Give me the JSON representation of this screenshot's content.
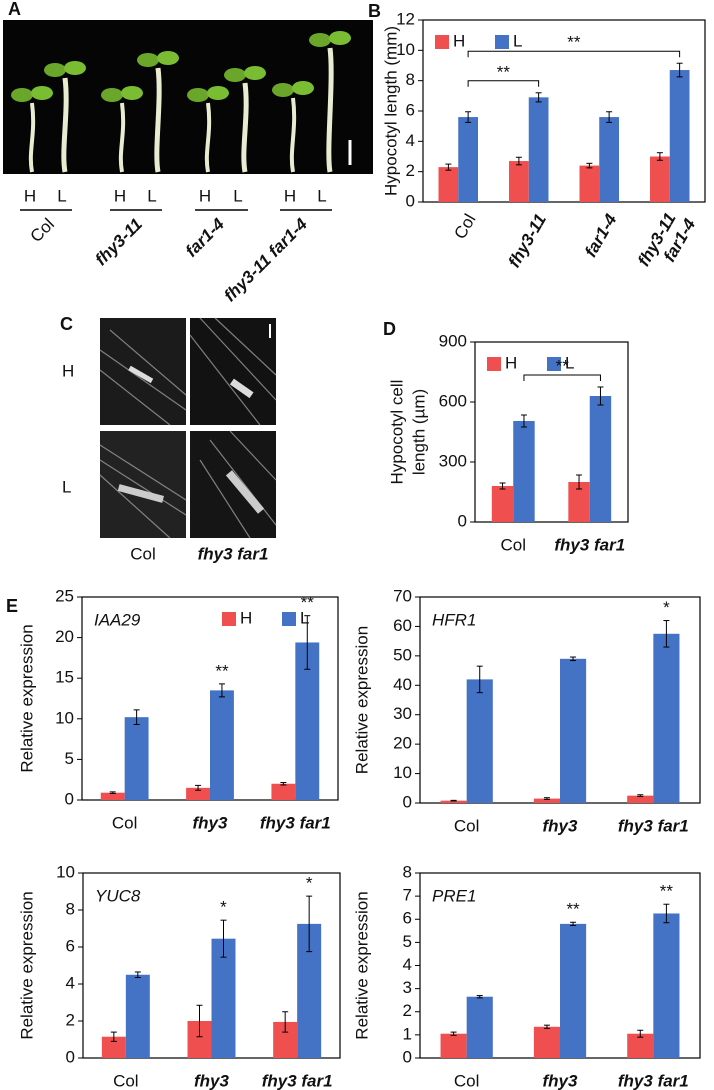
{
  "photo_a": {
    "panel": "A",
    "conditions": [
      "H",
      "L"
    ],
    "genotypes": [
      "Col",
      "fhy3-11",
      "far1-4",
      "fhy3-11 far1-4"
    ]
  },
  "photo_c": {
    "panel": "C",
    "conditions": [
      "H",
      "L"
    ],
    "genotypes": [
      "Col",
      "fhy3 far1"
    ]
  },
  "panel_e": "E",
  "chart_data": [
    {
      "type": "bar",
      "panel": "B",
      "ylabel": "Hypocotyl length (mm)",
      "categories": [
        "Col",
        "fhy3-11",
        "far1-4",
        "fhy3-11 far1-4"
      ],
      "category_italic": [
        false,
        true,
        true,
        true
      ],
      "wrap_labels": true,
      "rotate_labels": true,
      "series": [
        {
          "name": "H",
          "color": "#f04f4f",
          "values": [
            2.3,
            2.7,
            2.4,
            3.0
          ],
          "errors": [
            0.2,
            0.25,
            0.15,
            0.25
          ]
        },
        {
          "name": "L",
          "color": "#4472c4",
          "values": [
            5.6,
            6.9,
            5.6,
            8.7
          ],
          "errors": [
            0.35,
            0.3,
            0.35,
            0.45
          ]
        }
      ],
      "ylim": [
        0,
        12
      ],
      "yticks": [
        0,
        2,
        4,
        6,
        8,
        10,
        12
      ],
      "legend": "top-left",
      "comparisons": [
        {
          "between": [
            "Col",
            "fhy3-11"
          ],
          "label": "**"
        },
        {
          "between": [
            "Col",
            "fhy3-11 far1-4"
          ],
          "label": "**"
        }
      ]
    },
    {
      "type": "bar",
      "panel": "D",
      "ylabel": [
        "Hypocotyl cell",
        "length (µm)"
      ],
      "categories": [
        "Col",
        "fhy3 far1"
      ],
      "category_italic": [
        false,
        true
      ],
      "series": [
        {
          "name": "H",
          "color": "#f04f4f",
          "values": [
            180,
            200
          ],
          "errors": [
            15,
            35
          ]
        },
        {
          "name": "L",
          "color": "#4472c4",
          "values": [
            505,
            630
          ],
          "errors": [
            30,
            45
          ]
        }
      ],
      "ylim": [
        0,
        900
      ],
      "yticks": [
        0,
        300,
        600,
        900
      ],
      "legend": "top-left",
      "comparisons": [
        {
          "between": [
            "Col",
            "fhy3 far1"
          ],
          "label": "**"
        }
      ]
    },
    {
      "type": "bar",
      "title": "IAA29",
      "ylabel": "Relative expression",
      "categories": [
        "Col",
        "fhy3",
        "fhy3 far1"
      ],
      "category_italic": [
        false,
        true,
        true
      ],
      "series": [
        {
          "name": "H",
          "color": "#f04f4f",
          "values": [
            0.9,
            1.5,
            2.0
          ],
          "errors": [
            0.1,
            0.3,
            0.15
          ]
        },
        {
          "name": "L",
          "color": "#4472c4",
          "values": [
            10.2,
            13.5,
            19.4
          ],
          "errors": [
            0.9,
            0.8,
            3.3
          ]
        }
      ],
      "ylim": [
        0,
        25
      ],
      "yticks": [
        0,
        5,
        10,
        15,
        20,
        25
      ],
      "legend": "top-center",
      "significance": [
        null,
        "**",
        "**"
      ]
    },
    {
      "type": "bar",
      "title": "HFR1",
      "ylabel": "Relative expression",
      "categories": [
        "Col",
        "fhy3",
        "fhy3 far1"
      ],
      "category_italic": [
        false,
        true,
        true
      ],
      "series": [
        {
          "name": "H",
          "color": "#f04f4f",
          "values": [
            0.8,
            1.5,
            2.5
          ],
          "errors": [
            0.1,
            0.3,
            0.3
          ]
        },
        {
          "name": "L",
          "color": "#4472c4",
          "values": [
            42,
            49,
            57.5
          ],
          "errors": [
            4.5,
            0.6,
            4.5
          ]
        }
      ],
      "ylim": [
        0,
        70
      ],
      "yticks": [
        0,
        10,
        20,
        30,
        40,
        50,
        60,
        70
      ],
      "significance": [
        null,
        null,
        "*"
      ]
    },
    {
      "type": "bar",
      "title": "YUC8",
      "ylabel": "Relative expression",
      "categories": [
        "Col",
        "fhy3",
        "fhy3 far1"
      ],
      "category_italic": [
        false,
        true,
        true
      ],
      "series": [
        {
          "name": "H",
          "color": "#f04f4f",
          "values": [
            1.15,
            2.0,
            1.95
          ],
          "errors": [
            0.25,
            0.85,
            0.55
          ]
        },
        {
          "name": "L",
          "color": "#4472c4",
          "values": [
            4.5,
            6.45,
            7.25
          ],
          "errors": [
            0.15,
            1.0,
            1.5
          ]
        }
      ],
      "ylim": [
        0,
        10
      ],
      "yticks": [
        0,
        2,
        4,
        6,
        8,
        10
      ],
      "significance": [
        null,
        "*",
        "*"
      ]
    },
    {
      "type": "bar",
      "title": "PRE1",
      "ylabel": "Relative expression",
      "categories": [
        "Col",
        "fhy3",
        "fhy3 far1"
      ],
      "category_italic": [
        false,
        true,
        true
      ],
      "series": [
        {
          "name": "H",
          "color": "#f04f4f",
          "values": [
            1.05,
            1.35,
            1.05
          ],
          "errors": [
            0.07,
            0.07,
            0.15
          ]
        },
        {
          "name": "L",
          "color": "#4472c4",
          "values": [
            2.65,
            5.8,
            6.25
          ],
          "errors": [
            0.05,
            0.07,
            0.4
          ]
        }
      ],
      "ylim": [
        0,
        8
      ],
      "yticks": [
        0,
        1,
        2,
        3,
        4,
        5,
        6,
        7,
        8
      ],
      "significance": [
        null,
        "**",
        "**"
      ]
    }
  ]
}
